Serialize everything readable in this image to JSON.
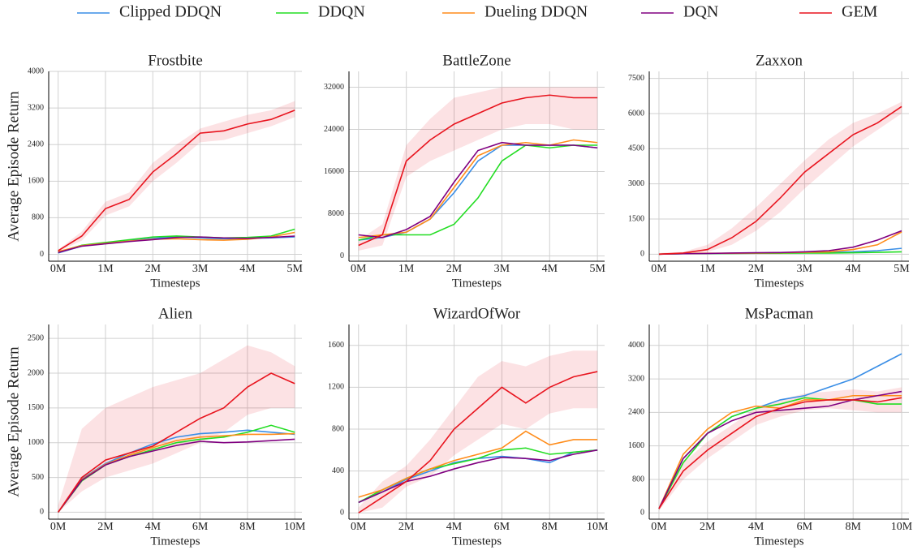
{
  "chart_data": [
    {
      "type": "line",
      "title": "Frostbite",
      "x_label": "Timesteps",
      "y_label": "Average Episode Return",
      "x": [
        0,
        0.5,
        1,
        1.5,
        2,
        2.5,
        3,
        3.5,
        4,
        4.5,
        5
      ],
      "xlim": [
        -0.2,
        5.15
      ],
      "xticks": [
        {
          "value": 0,
          "label": "0M"
        },
        {
          "value": 1,
          "label": "1M"
        },
        {
          "value": 2,
          "label": "2M"
        },
        {
          "value": 3,
          "label": "3M"
        },
        {
          "value": 4,
          "label": "4M"
        },
        {
          "value": 5,
          "label": "5M"
        }
      ],
      "ylim": [
        -150,
        4000
      ],
      "yticks": [
        0,
        800,
        1600,
        2400,
        3200,
        4000
      ],
      "grid": true,
      "series": [
        {
          "name": "Clipped DDQN",
          "color": "#3a8ee6",
          "values": [
            30,
            180,
            250,
            300,
            350,
            380,
            360,
            340,
            350,
            360,
            380
          ]
        },
        {
          "name": "DDQN",
          "color": "#22dd22",
          "values": [
            50,
            200,
            260,
            320,
            380,
            400,
            380,
            360,
            370,
            400,
            550
          ]
        },
        {
          "name": "Dueling DDQN",
          "color": "#ff8c1a",
          "values": [
            60,
            190,
            240,
            290,
            330,
            340,
            320,
            310,
            330,
            380,
            480
          ]
        },
        {
          "name": "DQN",
          "color": "#800080",
          "values": [
            40,
            180,
            230,
            280,
            320,
            370,
            380,
            360,
            350,
            370,
            400
          ]
        },
        {
          "name": "GEM",
          "color": "#e8141e",
          "values": [
            80,
            400,
            1000,
            1200,
            1800,
            2200,
            2650,
            2700,
            2850,
            2950,
            3150
          ],
          "lower": [
            60,
            300,
            850,
            1050,
            1600,
            2000,
            2450,
            2500,
            2650,
            2800,
            3000
          ],
          "upper": [
            100,
            500,
            1150,
            1350,
            2000,
            2400,
            2750,
            2900,
            3050,
            3150,
            3350
          ]
        }
      ]
    },
    {
      "type": "line",
      "title": "BattleZone",
      "x_label": "Timesteps",
      "x": [
        0,
        0.5,
        1,
        1.5,
        2,
        2.5,
        3,
        3.5,
        4,
        4.5,
        5
      ],
      "xlim": [
        -0.2,
        5.15
      ],
      "xticks": [
        {
          "value": 0,
          "label": "0M"
        },
        {
          "value": 1,
          "label": "1M"
        },
        {
          "value": 2,
          "label": "2M"
        },
        {
          "value": 3,
          "label": "3M"
        },
        {
          "value": 4,
          "label": "4M"
        },
        {
          "value": 5,
          "label": "5M"
        }
      ],
      "ylim": [
        -1000,
        35000
      ],
      "yticks": [
        0,
        8000,
        16000,
        24000,
        32000
      ],
      "grid": true,
      "series": [
        {
          "name": "Clipped DDQN",
          "color": "#3a8ee6",
          "values": [
            3000,
            3500,
            4500,
            7000,
            12000,
            18000,
            21000,
            21000,
            21000,
            21000,
            20500
          ]
        },
        {
          "name": "DDQN",
          "color": "#22dd22",
          "values": [
            3000,
            4000,
            4000,
            4000,
            6000,
            11000,
            18000,
            21000,
            20500,
            21000,
            21000
          ]
        },
        {
          "name": "Dueling DDQN",
          "color": "#ff8c1a",
          "values": [
            3500,
            4000,
            4500,
            7000,
            13000,
            19000,
            21000,
            21500,
            21000,
            22000,
            21500
          ]
        },
        {
          "name": "DQN",
          "color": "#800080",
          "values": [
            4000,
            3500,
            5000,
            7500,
            14000,
            20000,
            21500,
            21000,
            21000,
            21000,
            20500
          ]
        },
        {
          "name": "GEM",
          "color": "#e8141e",
          "values": [
            2000,
            4000,
            18000,
            22000,
            25000,
            27000,
            29000,
            30000,
            30500,
            30000,
            30000
          ],
          "lower": [
            1000,
            2000,
            15000,
            18000,
            20000,
            22000,
            24000,
            25000,
            25000,
            24000,
            24000
          ],
          "upper": [
            3000,
            6000,
            21000,
            26000,
            30000,
            31000,
            32000,
            32000,
            32000,
            32000,
            32000
          ]
        }
      ]
    },
    {
      "type": "line",
      "title": "Zaxxon",
      "x_label": "Timesteps",
      "x": [
        0,
        0.5,
        1,
        1.5,
        2,
        2.5,
        3,
        3.5,
        4,
        4.5,
        5
      ],
      "xlim": [
        -0.2,
        5.15
      ],
      "xticks": [
        {
          "value": 0,
          "label": "0M"
        },
        {
          "value": 1,
          "label": "1M"
        },
        {
          "value": 2,
          "label": "2M"
        },
        {
          "value": 3,
          "label": "3M"
        },
        {
          "value": 4,
          "label": "4M"
        },
        {
          "value": 5,
          "label": "5M"
        }
      ],
      "ylim": [
        -300,
        7800
      ],
      "yticks": [
        0,
        1500,
        3000,
        4500,
        6000,
        7500
      ],
      "grid": true,
      "series": [
        {
          "name": "Clipped DDQN",
          "color": "#3a8ee6",
          "values": [
            0,
            20,
            30,
            40,
            50,
            60,
            70,
            80,
            100,
            150,
            250
          ]
        },
        {
          "name": "DDQN",
          "color": "#22dd22",
          "values": [
            0,
            20,
            30,
            30,
            40,
            40,
            50,
            50,
            60,
            80,
            100
          ]
        },
        {
          "name": "Dueling DDQN",
          "color": "#ff8c1a",
          "values": [
            0,
            30,
            40,
            40,
            50,
            60,
            80,
            100,
            200,
            400,
            950
          ]
        },
        {
          "name": "DQN",
          "color": "#800080",
          "values": [
            0,
            20,
            30,
            50,
            60,
            70,
            100,
            150,
            300,
            600,
            1000
          ]
        },
        {
          "name": "GEM",
          "color": "#e8141e",
          "values": [
            0,
            50,
            200,
            700,
            1400,
            2400,
            3500,
            4300,
            5100,
            5600,
            6300
          ],
          "lower": [
            0,
            0,
            100,
            400,
            1000,
            1800,
            2800,
            3700,
            4600,
            5300,
            6000
          ],
          "upper": [
            50,
            100,
            400,
            1100,
            2000,
            3000,
            4000,
            4900,
            5600,
            6000,
            6500
          ]
        }
      ]
    },
    {
      "type": "line",
      "title": "Alien",
      "x_label": "Timesteps",
      "y_label": "Average Episode Return",
      "x": [
        0,
        1,
        2,
        3,
        4,
        5,
        6,
        7,
        8,
        9,
        10
      ],
      "xlim": [
        -0.4,
        10.3
      ],
      "xticks": [
        {
          "value": 0,
          "label": "0M"
        },
        {
          "value": 2,
          "label": "2M"
        },
        {
          "value": 4,
          "label": "4M"
        },
        {
          "value": 6,
          "label": "6M"
        },
        {
          "value": 8,
          "label": "8M"
        },
        {
          "value": 10,
          "label": "10M"
        }
      ],
      "ylim": [
        -100,
        2700
      ],
      "yticks": [
        0,
        500,
        1000,
        1500,
        2000,
        2500
      ],
      "grid": true,
      "series": [
        {
          "name": "Clipped DDQN",
          "color": "#3a8ee6",
          "values": [
            0,
            480,
            700,
            850,
            980,
            1080,
            1130,
            1150,
            1180,
            1150,
            1120
          ]
        },
        {
          "name": "DDQN",
          "color": "#22dd22",
          "values": [
            0,
            450,
            680,
            800,
            900,
            1000,
            1050,
            1080,
            1150,
            1250,
            1150
          ]
        },
        {
          "name": "Dueling DDQN",
          "color": "#ff8c1a",
          "values": [
            0,
            470,
            690,
            820,
            930,
            1030,
            1080,
            1100,
            1120,
            1120,
            1130
          ]
        },
        {
          "name": "DQN",
          "color": "#800080",
          "values": [
            0,
            460,
            680,
            800,
            880,
            960,
            1020,
            1000,
            1010,
            1030,
            1050
          ]
        },
        {
          "name": "GEM",
          "color": "#e8141e",
          "values": [
            0,
            500,
            750,
            850,
            950,
            1150,
            1350,
            1500,
            1800,
            2000,
            1850
          ],
          "lower": [
            0,
            300,
            500,
            600,
            700,
            850,
            1000,
            1150,
            1400,
            1500,
            1500
          ],
          "upper": [
            100,
            1200,
            1500,
            1650,
            1800,
            1900,
            2000,
            2200,
            2400,
            2300,
            2100
          ]
        }
      ]
    },
    {
      "type": "line",
      "title": "WizardOfWor",
      "x_label": "Timesteps",
      "x": [
        0,
        1,
        2,
        3,
        4,
        5,
        6,
        7,
        8,
        9,
        10
      ],
      "xlim": [
        -0.4,
        10.3
      ],
      "xticks": [
        {
          "value": 0,
          "label": "0M"
        },
        {
          "value": 2,
          "label": "2M"
        },
        {
          "value": 4,
          "label": "4M"
        },
        {
          "value": 6,
          "label": "6M"
        },
        {
          "value": 8,
          "label": "8M"
        },
        {
          "value": 10,
          "label": "10M"
        }
      ],
      "ylim": [
        -60,
        1800
      ],
      "yticks": [
        0,
        400,
        800,
        1200,
        1600
      ],
      "grid": true,
      "series": [
        {
          "name": "Clipped DDQN",
          "color": "#3a8ee6",
          "values": [
            100,
            200,
            320,
            400,
            480,
            520,
            540,
            520,
            480,
            580,
            600
          ]
        },
        {
          "name": "DDQN",
          "color": "#22dd22",
          "values": [
            100,
            220,
            330,
            420,
            470,
            520,
            600,
            620,
            560,
            580,
            600
          ]
        },
        {
          "name": "Dueling DDQN",
          "color": "#ff8c1a",
          "values": [
            150,
            220,
            330,
            420,
            500,
            560,
            620,
            780,
            650,
            700,
            700
          ]
        },
        {
          "name": "DQN",
          "color": "#800080",
          "values": [
            100,
            200,
            300,
            350,
            420,
            480,
            530,
            520,
            500,
            560,
            600
          ]
        },
        {
          "name": "GEM",
          "color": "#e8141e",
          "values": [
            0,
            150,
            300,
            500,
            800,
            1000,
            1200,
            1050,
            1200,
            1300,
            1350
          ],
          "lower": [
            0,
            50,
            250,
            350,
            550,
            700,
            850,
            800,
            950,
            1000,
            1000
          ],
          "upper": [
            50,
            300,
            450,
            700,
            1000,
            1300,
            1450,
            1400,
            1500,
            1550,
            1550
          ]
        }
      ]
    },
    {
      "type": "line",
      "title": "MsPacman",
      "x_label": "Timesteps",
      "x": [
        0,
        1,
        2,
        3,
        4,
        5,
        6,
        7,
        8,
        9,
        10
      ],
      "xlim": [
        -0.4,
        10.3
      ],
      "xticks": [
        {
          "value": 0,
          "label": "0M"
        },
        {
          "value": 2,
          "label": "2M"
        },
        {
          "value": 4,
          "label": "4M"
        },
        {
          "value": 6,
          "label": "6M"
        },
        {
          "value": 8,
          "label": "8M"
        },
        {
          "value": 10,
          "label": "10M"
        }
      ],
      "ylim": [
        -150,
        4500
      ],
      "yticks": [
        0,
        800,
        1600,
        2400,
        3200,
        4000
      ],
      "grid": true,
      "series": [
        {
          "name": "Clipped DDQN",
          "color": "#3a8ee6",
          "values": [
            100,
            1300,
            1900,
            2300,
            2500,
            2700,
            2800,
            3000,
            3200,
            3500,
            3800
          ]
        },
        {
          "name": "DDQN",
          "color": "#22dd22",
          "values": [
            100,
            1200,
            1900,
            2300,
            2500,
            2600,
            2750,
            2700,
            2700,
            2600,
            2600
          ]
        },
        {
          "name": "Dueling DDQN",
          "color": "#ff8c1a",
          "values": [
            100,
            1400,
            2000,
            2400,
            2550,
            2500,
            2700,
            2700,
            2800,
            2800,
            2800
          ]
        },
        {
          "name": "DQN",
          "color": "#800080",
          "values": [
            100,
            1300,
            1900,
            2200,
            2400,
            2450,
            2500,
            2550,
            2700,
            2800,
            2900
          ]
        },
        {
          "name": "GEM",
          "color": "#e8141e",
          "values": [
            100,
            1000,
            1500,
            1900,
            2300,
            2500,
            2650,
            2700,
            2700,
            2650,
            2750
          ],
          "lower": [
            50,
            800,
            1300,
            1700,
            2100,
            2300,
            2450,
            2500,
            2450,
            2400,
            2400
          ],
          "upper": [
            150,
            1200,
            1700,
            2100,
            2500,
            2700,
            2850,
            2900,
            2950,
            2900,
            3000
          ]
        }
      ]
    }
  ]
}
